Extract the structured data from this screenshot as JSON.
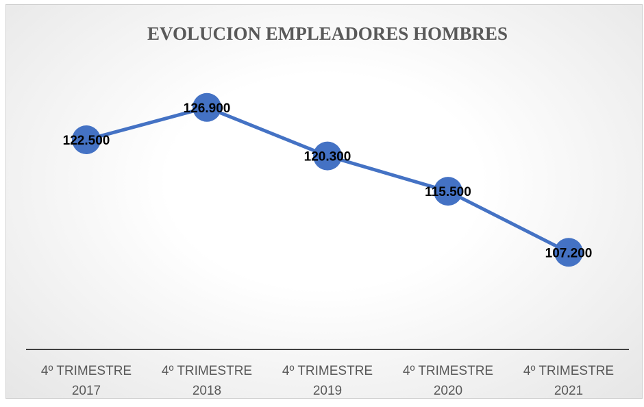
{
  "chart_data": {
    "type": "line",
    "title": "EVOLUCION EMPLEADORES HOMBRES",
    "categories": [
      "4º TRIMESTRE 2017",
      "4º TRIMESTRE 2018",
      "4º TRIMESTRE 2019",
      "4º TRIMESTRE 2020",
      "4º TRIMESTRE 2021"
    ],
    "series": [
      {
        "color": "#4472c4",
        "values": [
          122500,
          126900,
          120300,
          115500,
          107200
        ],
        "value_labels": [
          "122.500",
          "126.900",
          "120.300",
          "115.500",
          "107.200"
        ]
      }
    ],
    "ylim": [
      94000,
      132000
    ]
  }
}
